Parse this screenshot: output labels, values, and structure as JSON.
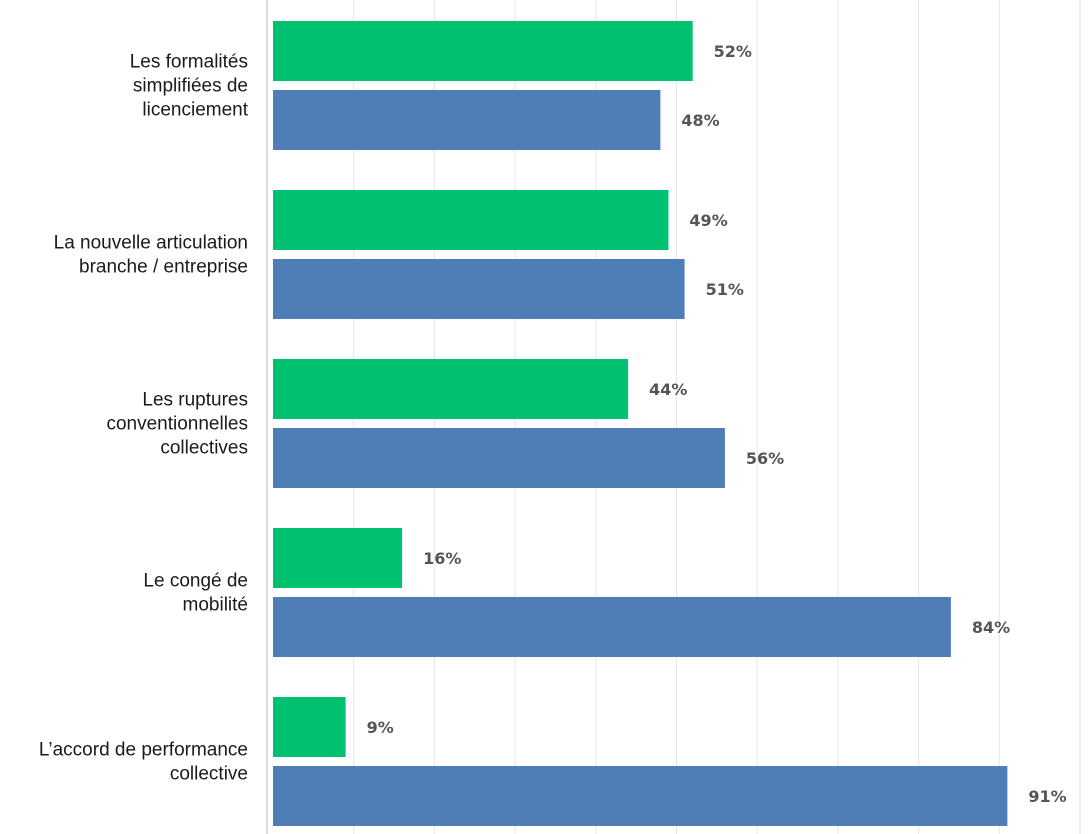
{
  "chart_data": {
    "type": "bar",
    "orientation": "horizontal",
    "categories": [
      "Les formalités simplifiées de licenciement",
      "La nouvelle articulation branche / entreprise",
      "Les ruptures conventionnelles collectives",
      "Le congé de mobilité",
      "L’accord de performance collective"
    ],
    "category_lines": [
      [
        "Les formalités",
        "simplifiées de",
        "licenciement"
      ],
      [
        "La nouvelle articulation",
        "branche / entreprise"
      ],
      [
        "Les ruptures",
        "conventionnelles",
        "collectives"
      ],
      [
        "Le congé de",
        "mobilité"
      ],
      [
        "L’accord de performance",
        "collective"
      ]
    ],
    "series": [
      {
        "values": [
          52,
          49,
          44,
          16,
          9
        ],
        "labels": [
          "52%",
          "49%",
          "44%",
          "16%",
          "9%"
        ],
        "color": "#00c170"
      },
      {
        "values": [
          48,
          51,
          56,
          84,
          91
        ],
        "labels": [
          "48%",
          "51%",
          "56%",
          "84%",
          "91%"
        ],
        "color": "#4f7db6"
      }
    ],
    "xlim": [
      0,
      100
    ],
    "grid": true,
    "title": "",
    "xlabel": "",
    "ylabel": ""
  }
}
